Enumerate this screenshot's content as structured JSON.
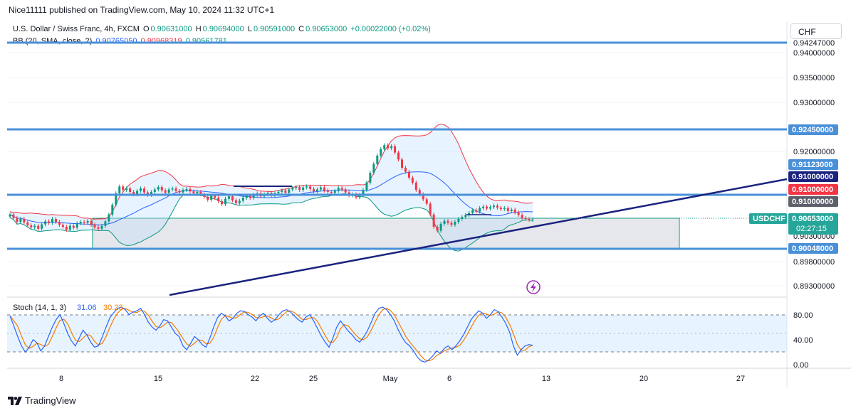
{
  "publisher_line": "Nice11111 published on TradingView.com, May 10, 2024 11:32 UTC+1",
  "brand": "TradingView",
  "currency_button": "CHF",
  "legend": {
    "symbol": "U.S. Dollar / Swiss Franc, 4h, FXCM",
    "open_label": "O",
    "open": "0.90631000",
    "high_label": "H",
    "high": "0.90694000",
    "low_label": "L",
    "low": "0.90591000",
    "close_label": "C",
    "close": "0.90653000",
    "change": "+0.00022000 (+0.02%)",
    "bb_label": "BB (20, SMA, close, 2)",
    "bb_basis": "0.90765050",
    "bb_upper": "0.90968319",
    "bb_lower": "0.90561781"
  },
  "stoch_legend": {
    "label": "Stoch (14, 1, 3)",
    "k": "31.06",
    "d": "30.23"
  },
  "colors": {
    "up": "#089981",
    "down": "#f23645",
    "level": "#4a90d9",
    "trend": "#1a237e",
    "bb_upper": "#f23645",
    "bb_lower": "#089981",
    "bb_basis": "#2962ff",
    "stoch_k": "#2962ff",
    "stoch_d": "#f57c00"
  },
  "price_labels": {
    "top_clipped": "0.94247000",
    "level_0924": "0.92450000",
    "level_09112": "0.91123000",
    "level_091_blue": "0.91000000",
    "level_091_red": "0.91000000",
    "level_091_gray": "0.91000000",
    "current_symbol": "USDCHF",
    "current_price": "0.90653000",
    "countdown": "02:27:15",
    "behind": "0.90300000",
    "level_09004": "0.90048000"
  },
  "chart_data": {
    "type": "candlestick",
    "symbol": "USDCHF",
    "timeframe": "4h",
    "x_ticks": [
      "8",
      "15",
      "22",
      "25",
      "May",
      "6",
      "13",
      "20",
      "27"
    ],
    "y_ticks": [
      "0.94000000",
      "0.93500000",
      "0.93000000",
      "0.92000000",
      "0.89800000",
      "0.89300000"
    ],
    "ylim": [
      0.8916,
      0.9435
    ],
    "horizontal_levels": [
      0.94247,
      0.9245,
      0.9112,
      0.9063,
      0.90048
    ],
    "range_box": {
      "top": 0.9063,
      "bottom": 0.9004,
      "label": ""
    },
    "trendline": {
      "from": {
        "x": "Apr 11",
        "y": 0.893
      },
      "to": {
        "x": "May 22",
        "y": 0.9135
      }
    },
    "closes": [
      0.9075,
      0.9068,
      0.906,
      0.9066,
      0.9059,
      0.9053,
      0.9049,
      0.9052,
      0.9046,
      0.9055,
      0.9061,
      0.9058,
      0.9066,
      0.906,
      0.9054,
      0.905,
      0.9044,
      0.9052,
      0.9048,
      0.9057,
      0.906,
      0.9058,
      0.9062,
      0.9054,
      0.9049,
      0.9046,
      0.9052,
      0.9061,
      0.9075,
      0.9095,
      0.9118,
      0.9132,
      0.9125,
      0.9128,
      0.9121,
      0.9116,
      0.9123,
      0.9128,
      0.912,
      0.9115,
      0.9121,
      0.9126,
      0.9131,
      0.9124,
      0.9119,
      0.9126,
      0.9128,
      0.9123,
      0.912,
      0.9125,
      0.9127,
      0.9122,
      0.9118,
      0.9121,
      0.9116,
      0.9111,
      0.9105,
      0.9113,
      0.9109,
      0.9102,
      0.9096,
      0.9107,
      0.9112,
      0.9104,
      0.9098,
      0.9103,
      0.9109,
      0.9113,
      0.9109,
      0.9115,
      0.9118,
      0.9112,
      0.9116,
      0.9119,
      0.9114,
      0.9118,
      0.9121,
      0.9124,
      0.9119,
      0.9126,
      0.9129,
      0.9131,
      0.9125,
      0.913,
      0.9132,
      0.9127,
      0.9122,
      0.9126,
      0.913,
      0.9124,
      0.9121,
      0.9119,
      0.9123,
      0.9129,
      0.9126,
      0.912,
      0.9114,
      0.9116,
      0.911,
      0.9115,
      0.9125,
      0.914,
      0.916,
      0.9178,
      0.9195,
      0.9208,
      0.9216,
      0.921,
      0.9214,
      0.9201,
      0.9187,
      0.917,
      0.9162,
      0.915,
      0.914,
      0.9125,
      0.9116,
      0.9106,
      0.9097,
      0.9075,
      0.905,
      0.9042,
      0.9056,
      0.9062,
      0.9058,
      0.9054,
      0.906,
      0.9066,
      0.907,
      0.9074,
      0.9078,
      0.9084,
      0.9081,
      0.9088,
      0.9091,
      0.9087,
      0.909,
      0.9093,
      0.9089,
      0.9086,
      0.9088,
      0.9082,
      0.9085,
      0.9079,
      0.9074,
      0.9068,
      0.9066,
      0.9064,
      0.9065
    ]
  },
  "stoch_data": {
    "ylim": [
      0,
      100
    ],
    "y_ticks": [
      "80.00",
      "40.00",
      "0.00"
    ],
    "bands": [
      20,
      80
    ],
    "k": [
      78,
      62,
      45,
      30,
      20,
      28,
      40,
      35,
      22,
      30,
      45,
      60,
      72,
      80,
      66,
      50,
      38,
      30,
      42,
      55,
      48,
      36,
      28,
      30,
      44,
      60,
      75,
      83,
      90,
      92,
      88,
      80,
      84,
      86,
      90,
      80,
      68,
      60,
      55,
      62,
      72,
      70,
      60,
      50,
      45,
      30,
      24,
      34,
      45,
      40,
      32,
      28,
      42,
      60,
      75,
      82,
      78,
      70,
      74,
      82,
      86,
      85,
      80,
      76,
      70,
      78,
      82,
      74,
      68,
      72,
      80,
      86,
      88,
      84,
      78,
      72,
      68,
      76,
      80,
      70,
      58,
      46,
      36,
      28,
      42,
      60,
      70,
      62,
      54,
      48,
      40,
      36,
      44,
      54,
      68,
      82,
      90,
      92,
      88,
      80,
      70,
      56,
      44,
      35,
      30,
      22,
      12,
      6,
      4,
      8,
      14,
      22,
      18,
      26,
      30,
      24,
      30,
      38,
      48,
      60,
      72,
      80,
      86,
      82,
      74,
      80,
      88,
      85,
      76,
      66,
      52,
      30,
      15,
      24,
      30,
      32,
      31
    ]
  }
}
